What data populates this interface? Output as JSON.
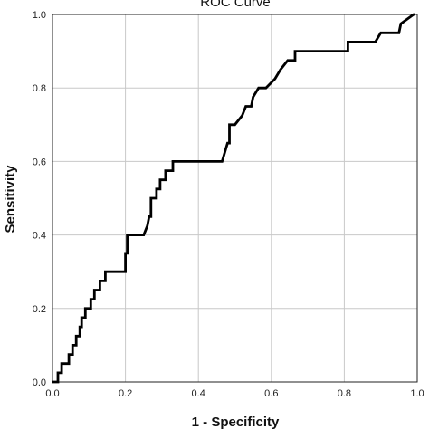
{
  "chart_data": {
    "type": "line",
    "title": "ROC Curve",
    "xlabel": "1 - Specificity",
    "ylabel": "Sensitivity",
    "xlim": [
      0,
      1
    ],
    "ylim": [
      0,
      1
    ],
    "x_ticks": [
      "0.0",
      "0.2",
      "0.4",
      "0.6",
      "0.8",
      "1.0"
    ],
    "y_ticks": [
      "0.0",
      "0.2",
      "0.4",
      "0.6",
      "0.8",
      "1.0"
    ],
    "grid": true,
    "legend": "none",
    "series": [
      {
        "x": [
          0,
          0.015,
          0.015,
          0.025,
          0.025,
          0.045,
          0.045,
          0.055,
          0.055,
          0.065,
          0.065,
          0.075,
          0.075,
          0.08,
          0.08,
          0.09,
          0.09,
          0.105,
          0.105,
          0.115,
          0.115,
          0.13,
          0.13,
          0.145,
          0.145,
          0.155,
          0.155,
          0.165,
          0.165,
          0.2,
          0.2,
          0.205,
          0.205,
          0.25,
          0.25,
          0.26,
          0.265,
          0.27,
          0.27,
          0.285,
          0.285,
          0.295,
          0.295,
          0.31,
          0.31,
          0.33,
          0.33,
          0.345,
          0.345,
          0.465,
          0.48,
          0.485,
          0.485,
          0.5,
          0.52,
          0.53,
          0.545,
          0.55,
          0.565,
          0.585,
          0.585,
          0.61,
          0.625,
          0.645,
          0.645,
          0.665,
          0.665,
          0.69,
          0.79,
          0.81,
          0.81,
          0.835,
          0.835,
          0.885,
          0.9,
          0.92,
          0.92,
          0.95,
          0.955,
          0.955,
          0.99,
          0.995
        ],
        "y": [
          0,
          0,
          0.025,
          0.025,
          0.05,
          0.05,
          0.075,
          0.075,
          0.1,
          0.1,
          0.125,
          0.125,
          0.15,
          0.15,
          0.175,
          0.175,
          0.2,
          0.2,
          0.225,
          0.225,
          0.25,
          0.25,
          0.275,
          0.275,
          0.3,
          0.3,
          0.3,
          0.3,
          0.3,
          0.3,
          0.35,
          0.35,
          0.4,
          0.4,
          0.4,
          0.425,
          0.45,
          0.45,
          0.5,
          0.5,
          0.525,
          0.525,
          0.55,
          0.55,
          0.575,
          0.575,
          0.6,
          0.6,
          0.6,
          0.6,
          0.65,
          0.65,
          0.7,
          0.7,
          0.725,
          0.75,
          0.75,
          0.775,
          0.8,
          0.8,
          0.8,
          0.825,
          0.85,
          0.875,
          0.875,
          0.875,
          0.9,
          0.9,
          0.9,
          0.9,
          0.925,
          0.925,
          0.925,
          0.925,
          0.95,
          0.95,
          0.95,
          0.95,
          0.975,
          0.975,
          1.0,
          1.0
        ]
      }
    ]
  }
}
